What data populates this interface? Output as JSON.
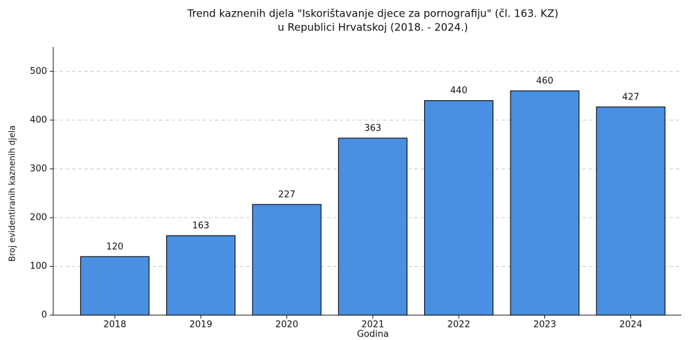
{
  "chart_data": {
    "type": "bar",
    "title": [
      "Trend kaznenih djela \"Iskorištavanje djece za pornografiju\" (čl. 163. KZ)",
      "u Republici Hrvatskoj (2018. - 2024.)"
    ],
    "x_label": "Godina",
    "y_label": "Broj evidentiranih kaznenih djela",
    "categories": [
      "2018",
      "2019",
      "2020",
      "2021",
      "2022",
      "2023",
      "2024"
    ],
    "values": [
      120,
      163,
      227,
      363,
      440,
      460,
      427
    ],
    "color": "#4a90e2",
    "edge_color": "#111111",
    "ylim": [
      0,
      550
    ],
    "yticks": [
      0,
      100,
      200,
      300,
      400,
      500
    ],
    "grid": true
  }
}
